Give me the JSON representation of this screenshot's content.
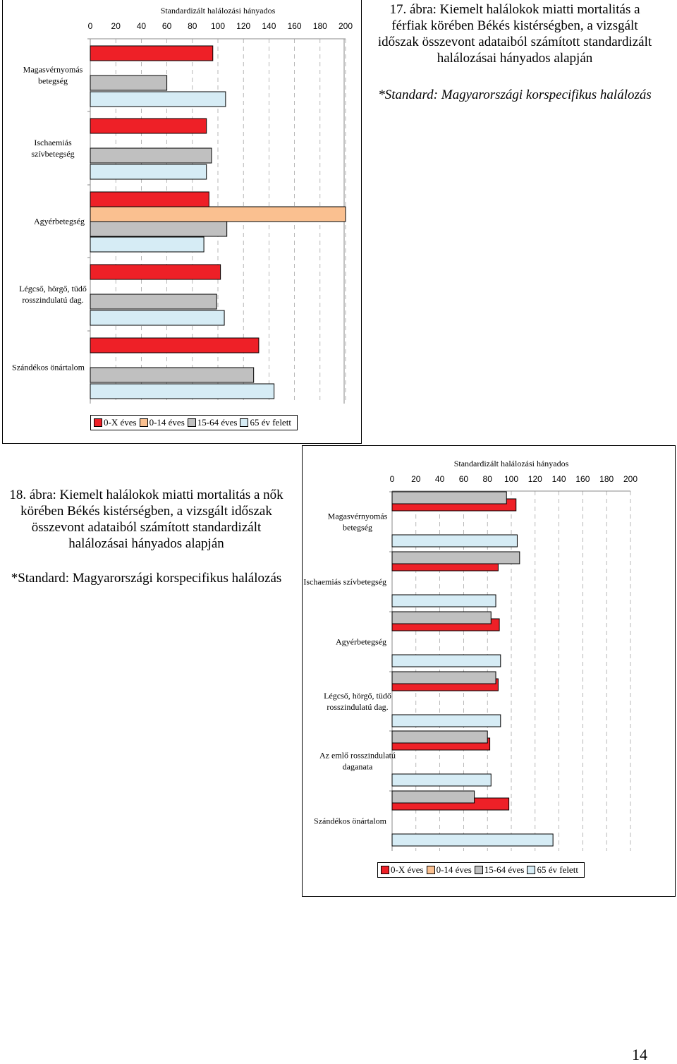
{
  "caption_top": {
    "title": "17. ábra: Kiemelt halálokok miatti mortalitás a férfiak körében Békés kistérségben, a vizsgált időszak összevont adataiból számított standardizált halálozásai hányados alapján",
    "note": "*Standard: Magyarországi korspecifikus halálozás"
  },
  "caption_bottom": {
    "title": "18. ábra: Kiemelt halálokok miatti mortalitás a nők körében Békés kistérségben, a vizsgált időszak összevont adataiból számított standardizált halálozásai hányados alapján",
    "note": "*Standard: Magyarországi korspecifikus halálozás"
  },
  "page_number": "14",
  "series_colors": [
    "#ee2027",
    "#fac090",
    "#c0c0c0",
    "#d6ecf5"
  ],
  "legend": [
    "0-X éves",
    "0-14 éves",
    "15-64 éves",
    "65 év felett"
  ],
  "chart_data": [
    {
      "type": "bar",
      "orientation": "horizontal",
      "title": "Standardizált halálozási hányados",
      "xlim": [
        0,
        200
      ],
      "xticks": [
        "0",
        "20",
        "40",
        "60",
        "80",
        "100",
        "120",
        "140",
        "160",
        "180",
        "200"
      ],
      "categories": [
        "Magasvérnyomás betegség",
        "Ischaemiás szívbetegség",
        "Agyérbetegség",
        "Légcső, hörgő, tüdő rosszindulatú dag.",
        "Szándékos önártalom"
      ],
      "series": [
        {
          "name": "0-X éves",
          "values": [
            96,
            91,
            93,
            102,
            132
          ]
        },
        {
          "name": "0-14 éves",
          "values": [
            null,
            null,
            200,
            null,
            null
          ]
        },
        {
          "name": "15-64 éves",
          "values": [
            60,
            95,
            107,
            99,
            128
          ]
        },
        {
          "name": "65 év felett",
          "values": [
            106,
            91,
            89,
            105,
            144
          ]
        }
      ],
      "legend_position": "bottom"
    },
    {
      "type": "bar",
      "orientation": "horizontal",
      "title": "Standardizált halálozási hányados",
      "xlim": [
        0,
        200
      ],
      "xticks": [
        "0",
        "20",
        "40",
        "60",
        "80",
        "100",
        "120",
        "140",
        "160",
        "180",
        "200"
      ],
      "categories": [
        "Magasvérnyomás betegség",
        "Ischaemiás szívbetegség",
        "Agyérbetegség",
        "Légcső, hörgő, tüdő rosszindulatú dag.",
        "Az emlő rosszindulatú daganata",
        "Szándékos önártalom"
      ],
      "series": [
        {
          "name": "0-X éves",
          "values": [
            104,
            89,
            90,
            89,
            82,
            98
          ]
        },
        {
          "name": "0-14 éves",
          "values": [
            null,
            null,
            null,
            null,
            null,
            null
          ]
        },
        {
          "name": "15-64 éves",
          "values": [
            96,
            107,
            83,
            87,
            80,
            69
          ]
        },
        {
          "name": "65 év felett",
          "values": [
            105,
            87,
            91,
            91,
            83,
            135
          ]
        }
      ],
      "legend_position": "bottom"
    }
  ]
}
